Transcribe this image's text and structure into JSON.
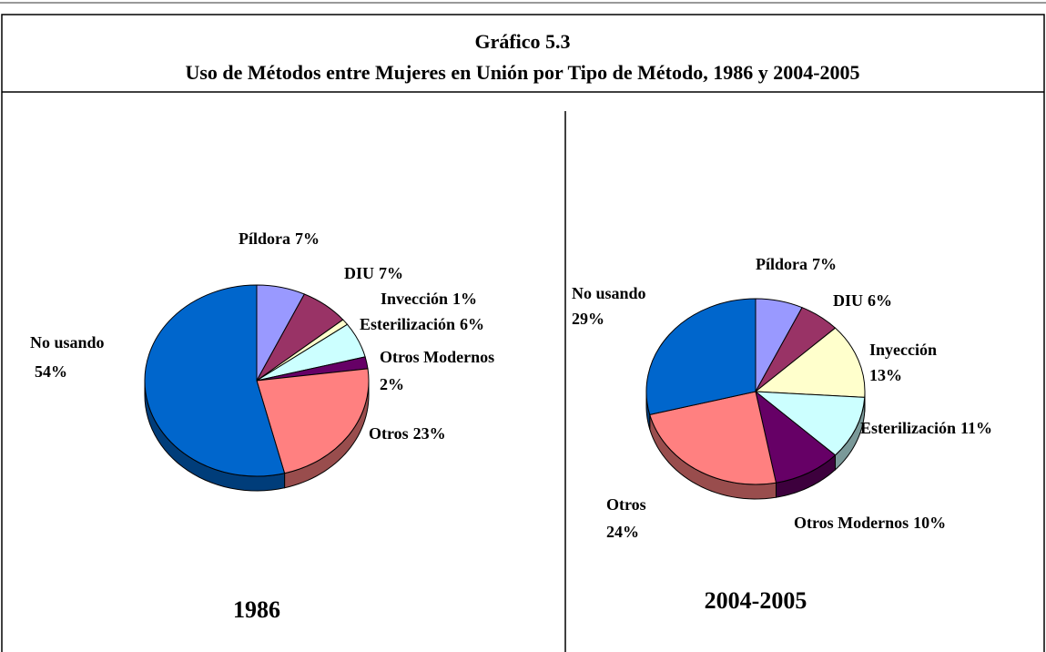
{
  "title": "Gráfico 5.3",
  "subtitle": "Uso de Métodos entre Mujeres en Unión por Tipo de Método, 1986 y 2004-2005",
  "chart_data": [
    {
      "type": "pie",
      "title": "1986",
      "categories": [
        "Píldora",
        "DIU",
        "Invección",
        "Esterilización",
        "Otros Modernos",
        "Otros",
        "No usando"
      ],
      "values": [
        7,
        7,
        1,
        6,
        2,
        23,
        54
      ],
      "value_labels": [
        "7%",
        "7%",
        "1%",
        "6%",
        "2%",
        "23%",
        "54%"
      ],
      "colors": [
        "#9999ff",
        "#993366",
        "#ffffcc",
        "#ccffff",
        "#660066",
        "#ff8080",
        "#0066cc"
      ]
    },
    {
      "type": "pie",
      "title": "2004-2005",
      "categories": [
        "Píldora",
        "DIU",
        "Inyección",
        "Esterilización",
        "Otros Modernos",
        "Otros",
        "No usando"
      ],
      "values": [
        7,
        6,
        13,
        11,
        10,
        24,
        29
      ],
      "value_labels": [
        "7%",
        "6%",
        "13%",
        "11%",
        "10%",
        "24%",
        "29%"
      ],
      "colors": [
        "#9999ff",
        "#993366",
        "#ffffcc",
        "#ccffff",
        "#660066",
        "#ff8080",
        "#0066cc"
      ]
    }
  ]
}
